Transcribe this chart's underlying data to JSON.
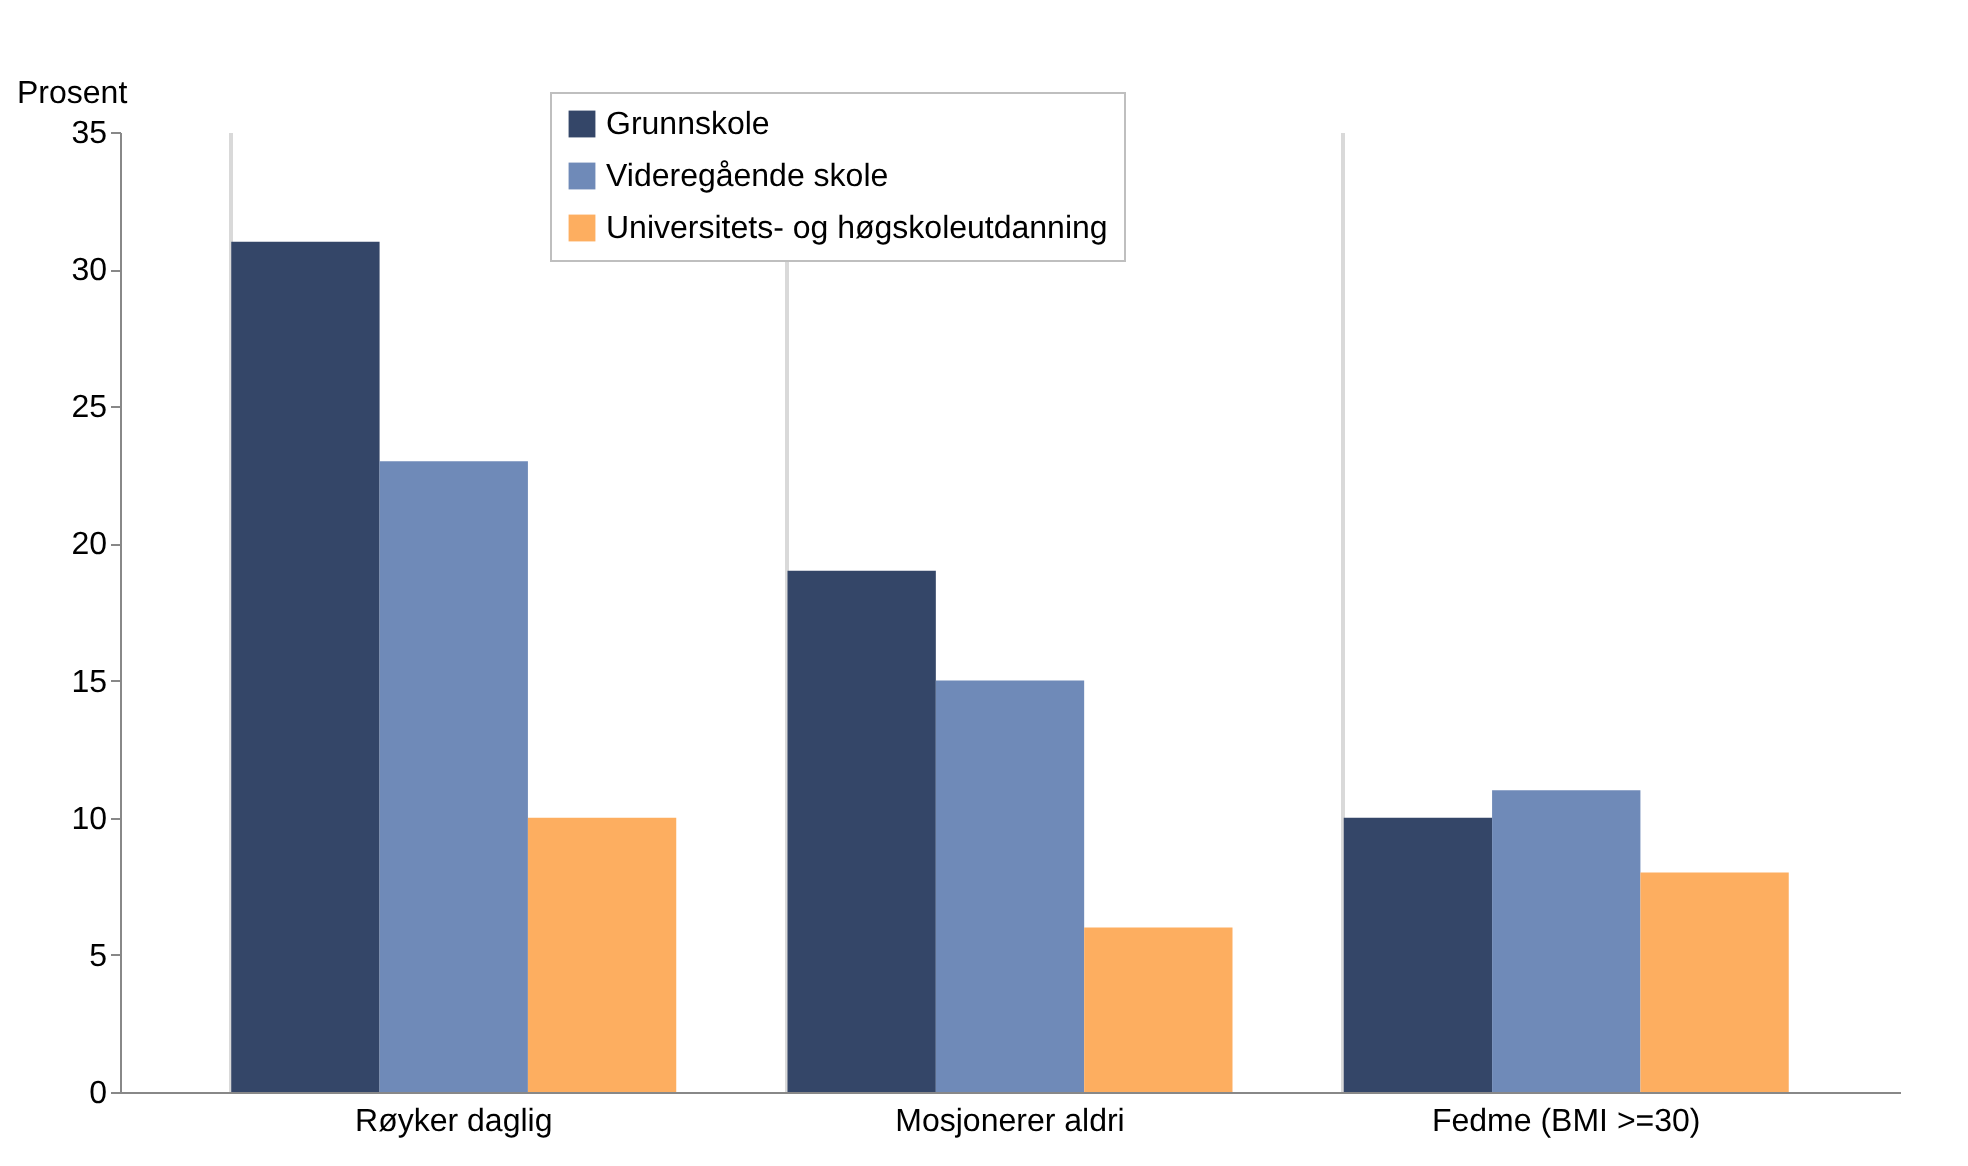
{
  "chart_data": {
    "type": "bar",
    "ylabel": "Prosent",
    "categories": [
      "Røyker daglig",
      "Mosjonerer aldri",
      "Fedme (BMI >=30)"
    ],
    "series": [
      {
        "name": "Grunnskole",
        "color": "#344668",
        "values": [
          31,
          19,
          10
        ]
      },
      {
        "name": "Videregående skole",
        "color": "#6f8ab8",
        "values": [
          23,
          15,
          11
        ]
      },
      {
        "name": "Universitets- og høgskoleutdanning",
        "color": "#fdae60",
        "values": [
          10,
          6,
          8
        ]
      }
    ],
    "ylim": [
      0,
      35
    ],
    "yticks": [
      0,
      5,
      10,
      15,
      20,
      25,
      30,
      35
    ],
    "grid": "x",
    "legend": "top"
  }
}
